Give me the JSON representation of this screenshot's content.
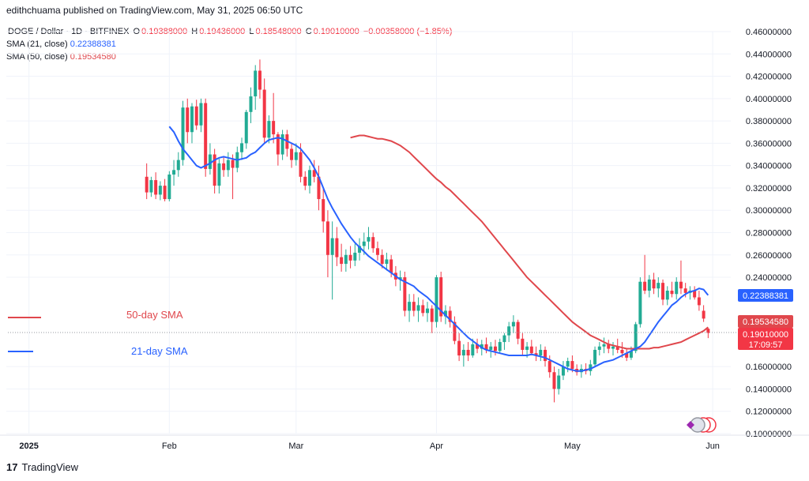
{
  "publisher_line": "edithchuama published on TradingView.com, May 31, 2025 06:50 UTC",
  "legend": {
    "symbol": "DOGE / Dollar · 1D · BITFINEX",
    "open_label": "O",
    "open": "0.19388000",
    "high_label": "H",
    "high": "0.19436000",
    "low_label": "L",
    "low": "0.18548000",
    "close_label": "C",
    "close": "0.19010000",
    "change": "−0.00358000 (−1.85%)",
    "sma21_label": "SMA (21, close)",
    "sma21_value": "0.22388381",
    "sma50_label": "SMA (50, close)",
    "sma50_value": "0.19534580"
  },
  "annotations": {
    "sma50_text": "50-day SMA",
    "sma21_text": "21-day SMA"
  },
  "price_labels": {
    "sma21": "0.22388381",
    "sma50": "0.19534580",
    "last": "0.19010000",
    "countdown": "17:09:57"
  },
  "branding": "TradingView",
  "colors": {
    "up": "#22ab94",
    "down": "#f23645",
    "sma21": "#2962ff",
    "sma50": "#e0474c",
    "grid": "#f0f3fa"
  },
  "chart_data": {
    "type": "candlestick",
    "title": "DOGE / Dollar · 1D · BITFINEX",
    "y_ticks": [
      "0.46000000",
      "0.44000000",
      "0.42000000",
      "0.40000000",
      "0.38000000",
      "0.36000000",
      "0.34000000",
      "0.32000000",
      "0.30000000",
      "0.28000000",
      "0.26000000",
      "0.24000000",
      "0.16000000",
      "0.14000000",
      "0.12000000",
      "0.10000000"
    ],
    "ylim": [
      0.1,
      0.46
    ],
    "x_ticks": [
      {
        "label": "2025",
        "day": 5
      },
      {
        "label": "Feb",
        "day": 36
      },
      {
        "label": "Mar",
        "day": 64
      },
      {
        "label": "Apr",
        "day": 95
      },
      {
        "label": "May",
        "day": 125
      },
      {
        "label": "Jun",
        "day": 156
      }
    ],
    "candles": [
      [
        0.33,
        0.342,
        0.31,
        0.316
      ],
      [
        0.316,
        0.33,
        0.312,
        0.327
      ],
      [
        0.327,
        0.334,
        0.31,
        0.314
      ],
      [
        0.314,
        0.326,
        0.309,
        0.322
      ],
      [
        0.322,
        0.328,
        0.308,
        0.31
      ],
      [
        0.31,
        0.335,
        0.308,
        0.332
      ],
      [
        0.332,
        0.345,
        0.322,
        0.336
      ],
      [
        0.336,
        0.352,
        0.33,
        0.345
      ],
      [
        0.345,
        0.398,
        0.34,
        0.392
      ],
      [
        0.392,
        0.4,
        0.36,
        0.37
      ],
      [
        0.37,
        0.396,
        0.36,
        0.393
      ],
      [
        0.393,
        0.399,
        0.372,
        0.376
      ],
      [
        0.376,
        0.4,
        0.37,
        0.396
      ],
      [
        0.396,
        0.4,
        0.33,
        0.337
      ],
      [
        0.337,
        0.36,
        0.332,
        0.35
      ],
      [
        0.35,
        0.355,
        0.315,
        0.322
      ],
      [
        0.322,
        0.346,
        0.315,
        0.342
      ],
      [
        0.342,
        0.348,
        0.33,
        0.336
      ],
      [
        0.336,
        0.352,
        0.33,
        0.345
      ],
      [
        0.345,
        0.35,
        0.31,
        0.338
      ],
      [
        0.338,
        0.357,
        0.334,
        0.352
      ],
      [
        0.352,
        0.365,
        0.345,
        0.36
      ],
      [
        0.36,
        0.39,
        0.355,
        0.388
      ],
      [
        0.388,
        0.41,
        0.378,
        0.402
      ],
      [
        0.402,
        0.43,
        0.39,
        0.425
      ],
      [
        0.425,
        0.435,
        0.4,
        0.408
      ],
      [
        0.408,
        0.418,
        0.36,
        0.365
      ],
      [
        0.365,
        0.385,
        0.36,
        0.38
      ],
      [
        0.38,
        0.405,
        0.36,
        0.368
      ],
      [
        0.368,
        0.37,
        0.34,
        0.35
      ],
      [
        0.35,
        0.372,
        0.345,
        0.368
      ],
      [
        0.368,
        0.372,
        0.348,
        0.355
      ],
      [
        0.355,
        0.36,
        0.338,
        0.345
      ],
      [
        0.345,
        0.36,
        0.34,
        0.352
      ],
      [
        0.352,
        0.36,
        0.325,
        0.33
      ],
      [
        0.33,
        0.335,
        0.318,
        0.322
      ],
      [
        0.322,
        0.34,
        0.315,
        0.336
      ],
      [
        0.336,
        0.345,
        0.325,
        0.33
      ],
      [
        0.33,
        0.34,
        0.3,
        0.31
      ],
      [
        0.31,
        0.32,
        0.28,
        0.29
      ],
      [
        0.29,
        0.3,
        0.24,
        0.26
      ],
      [
        0.26,
        0.29,
        0.22,
        0.275
      ],
      [
        0.275,
        0.285,
        0.25,
        0.258
      ],
      [
        0.258,
        0.27,
        0.245,
        0.252
      ],
      [
        0.252,
        0.265,
        0.245,
        0.26
      ],
      [
        0.26,
        0.268,
        0.248,
        0.255
      ],
      [
        0.255,
        0.27,
        0.25,
        0.262
      ],
      [
        0.262,
        0.275,
        0.255,
        0.268
      ],
      [
        0.268,
        0.28,
        0.26,
        0.272
      ],
      [
        0.272,
        0.285,
        0.265,
        0.276
      ],
      [
        0.276,
        0.28,
        0.262,
        0.266
      ],
      [
        0.266,
        0.272,
        0.255,
        0.26
      ],
      [
        0.26,
        0.265,
        0.248,
        0.252
      ],
      [
        0.252,
        0.262,
        0.246,
        0.256
      ],
      [
        0.256,
        0.26,
        0.24,
        0.244
      ],
      [
        0.244,
        0.25,
        0.232,
        0.238
      ],
      [
        0.238,
        0.246,
        0.228,
        0.24
      ],
      [
        0.24,
        0.245,
        0.205,
        0.21
      ],
      [
        0.21,
        0.225,
        0.2,
        0.218
      ],
      [
        0.218,
        0.225,
        0.205,
        0.21
      ],
      [
        0.21,
        0.222,
        0.2,
        0.215
      ],
      [
        0.215,
        0.22,
        0.205,
        0.208
      ],
      [
        0.208,
        0.218,
        0.2,
        0.212
      ],
      [
        0.212,
        0.215,
        0.19,
        0.2
      ],
      [
        0.2,
        0.242,
        0.195,
        0.24
      ],
      [
        0.24,
        0.245,
        0.2,
        0.205
      ],
      [
        0.205,
        0.215,
        0.198,
        0.21
      ],
      [
        0.21,
        0.214,
        0.195,
        0.2
      ],
      [
        0.2,
        0.205,
        0.18,
        0.183
      ],
      [
        0.183,
        0.19,
        0.165,
        0.17
      ],
      [
        0.17,
        0.18,
        0.16,
        0.175
      ],
      [
        0.175,
        0.182,
        0.165,
        0.17
      ],
      [
        0.17,
        0.185,
        0.168,
        0.18
      ],
      [
        0.18,
        0.185,
        0.172,
        0.176
      ],
      [
        0.176,
        0.184,
        0.17,
        0.18
      ],
      [
        0.18,
        0.186,
        0.172,
        0.175
      ],
      [
        0.175,
        0.182,
        0.168,
        0.178
      ],
      [
        0.178,
        0.184,
        0.17,
        0.174
      ],
      [
        0.174,
        0.185,
        0.172,
        0.182
      ],
      [
        0.182,
        0.19,
        0.175,
        0.188
      ],
      [
        0.188,
        0.2,
        0.182,
        0.196
      ],
      [
        0.196,
        0.206,
        0.19,
        0.2
      ],
      [
        0.2,
        0.202,
        0.18,
        0.185
      ],
      [
        0.185,
        0.19,
        0.17,
        0.175
      ],
      [
        0.175,
        0.182,
        0.168,
        0.178
      ],
      [
        0.178,
        0.184,
        0.17,
        0.172
      ],
      [
        0.172,
        0.178,
        0.165,
        0.17
      ],
      [
        0.17,
        0.18,
        0.165,
        0.175
      ],
      [
        0.175,
        0.178,
        0.16,
        0.165
      ],
      [
        0.165,
        0.17,
        0.15,
        0.155
      ],
      [
        0.155,
        0.16,
        0.128,
        0.14
      ],
      [
        0.14,
        0.158,
        0.135,
        0.152
      ],
      [
        0.152,
        0.165,
        0.148,
        0.16
      ],
      [
        0.16,
        0.168,
        0.155,
        0.165
      ],
      [
        0.165,
        0.17,
        0.155,
        0.158
      ],
      [
        0.158,
        0.162,
        0.152,
        0.155
      ],
      [
        0.155,
        0.162,
        0.15,
        0.158
      ],
      [
        0.158,
        0.163,
        0.153,
        0.156
      ],
      [
        0.156,
        0.166,
        0.152,
        0.162
      ],
      [
        0.162,
        0.178,
        0.16,
        0.175
      ],
      [
        0.175,
        0.182,
        0.17,
        0.178
      ],
      [
        0.178,
        0.186,
        0.172,
        0.18
      ],
      [
        0.18,
        0.184,
        0.172,
        0.176
      ],
      [
        0.176,
        0.182,
        0.17,
        0.178
      ],
      [
        0.178,
        0.185,
        0.172,
        0.175
      ],
      [
        0.175,
        0.182,
        0.168,
        0.172
      ],
      [
        0.172,
        0.176,
        0.165,
        0.168
      ],
      [
        0.168,
        0.178,
        0.166,
        0.174
      ],
      [
        0.174,
        0.2,
        0.172,
        0.198
      ],
      [
        0.198,
        0.24,
        0.195,
        0.236
      ],
      [
        0.236,
        0.26,
        0.225,
        0.228
      ],
      [
        0.228,
        0.242,
        0.222,
        0.238
      ],
      [
        0.238,
        0.244,
        0.225,
        0.23
      ],
      [
        0.23,
        0.24,
        0.222,
        0.235
      ],
      [
        0.235,
        0.238,
        0.215,
        0.22
      ],
      [
        0.22,
        0.232,
        0.215,
        0.228
      ],
      [
        0.228,
        0.236,
        0.222,
        0.225
      ],
      [
        0.225,
        0.24,
        0.22,
        0.236
      ],
      [
        0.236,
        0.255,
        0.225,
        0.23
      ],
      [
        0.23,
        0.235,
        0.222,
        0.226
      ],
      [
        0.226,
        0.232,
        0.22,
        0.228
      ],
      [
        0.228,
        0.232,
        0.22,
        0.222
      ],
      [
        0.222,
        0.228,
        0.21,
        0.215
      ],
      [
        0.21,
        0.215,
        0.2,
        0.203
      ],
      [
        0.1939,
        0.1944,
        0.1855,
        0.1901
      ]
    ],
    "sma21": [
      0.375,
      0.37,
      0.362,
      0.355,
      0.35,
      0.345,
      0.34,
      0.338,
      0.34,
      0.342,
      0.345,
      0.347,
      0.348,
      0.347,
      0.346,
      0.345,
      0.346,
      0.347,
      0.35,
      0.352,
      0.356,
      0.36,
      0.363,
      0.364,
      0.365,
      0.364,
      0.362,
      0.36,
      0.358,
      0.355,
      0.35,
      0.345,
      0.338,
      0.33,
      0.32,
      0.31,
      0.302,
      0.295,
      0.288,
      0.282,
      0.276,
      0.271,
      0.267,
      0.263,
      0.259,
      0.256,
      0.253,
      0.25,
      0.247,
      0.244,
      0.241,
      0.238,
      0.236,
      0.234,
      0.232,
      0.228,
      0.225,
      0.222,
      0.218,
      0.214,
      0.21,
      0.206,
      0.202,
      0.198,
      0.194,
      0.19,
      0.186,
      0.183,
      0.18,
      0.177,
      0.175,
      0.174,
      0.173,
      0.172,
      0.171,
      0.17,
      0.17,
      0.17,
      0.17,
      0.17,
      0.171,
      0.17,
      0.169,
      0.168,
      0.166,
      0.164,
      0.162,
      0.16,
      0.158,
      0.157,
      0.156,
      0.156,
      0.157,
      0.158,
      0.16,
      0.162,
      0.164,
      0.165,
      0.166,
      0.168,
      0.17,
      0.172,
      0.174,
      0.176,
      0.178,
      0.182,
      0.188,
      0.194,
      0.2,
      0.205,
      0.21,
      0.215,
      0.218,
      0.222,
      0.225,
      0.227,
      0.228,
      0.23,
      0.229,
      0.2239
    ],
    "sma50": [
      0.365,
      0.366,
      0.367,
      0.367,
      0.366,
      0.365,
      0.364,
      0.364,
      0.363,
      0.362,
      0.36,
      0.358,
      0.355,
      0.352,
      0.348,
      0.344,
      0.34,
      0.336,
      0.332,
      0.328,
      0.325,
      0.321,
      0.318,
      0.314,
      0.31,
      0.306,
      0.302,
      0.298,
      0.294,
      0.29,
      0.285,
      0.28,
      0.275,
      0.27,
      0.265,
      0.26,
      0.255,
      0.25,
      0.245,
      0.24,
      0.236,
      0.232,
      0.228,
      0.224,
      0.22,
      0.216,
      0.212,
      0.208,
      0.204,
      0.2,
      0.197,
      0.194,
      0.191,
      0.188,
      0.186,
      0.184,
      0.182,
      0.18,
      0.179,
      0.178,
      0.177,
      0.176,
      0.176,
      0.176,
      0.176,
      0.176,
      0.176,
      0.177,
      0.177,
      0.178,
      0.179,
      0.18,
      0.181,
      0.182,
      0.184,
      0.186,
      0.188,
      0.19,
      0.192,
      0.1953
    ]
  }
}
